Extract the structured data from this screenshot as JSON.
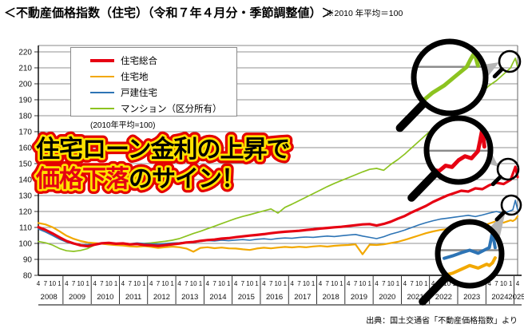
{
  "header": {
    "title": "＜不動産価格指数（住宅）（令和７年４月分・季節調整値）＞",
    "note": "※2010 年平均＝100"
  },
  "overlay": {
    "line1": "住宅ローン金利の上昇で",
    "line2_em": "価格下落",
    "line2_rest": "のサイン！",
    "colors": {
      "outline_outer": "#e50000",
      "outline_inner": "#ffe100",
      "fill_main": "#000000",
      "fill_em": "#e50012"
    }
  },
  "legend": {
    "items": [
      {
        "label": "住宅総合",
        "color": "#e60012"
      },
      {
        "label": "住宅地",
        "color": "#f2a800"
      },
      {
        "label": "戸建住宅",
        "color": "#2d74b5"
      },
      {
        "label": "マンション（区分所有）",
        "color": "#8cc320"
      }
    ],
    "note": "(2010年平均=100)"
  },
  "source": "出典：国土交通省「不動産価格指数」より",
  "chart_data": {
    "type": "line",
    "title": "不動産価格指数（住宅）季節調整値",
    "x_axis": {
      "start": "2008-04",
      "end": "2025-04",
      "month_tick_pattern": [
        "4",
        "7",
        "10",
        "1"
      ],
      "years": [
        "2008",
        "2009",
        "2010",
        "2011",
        "2012",
        "2013",
        "2014",
        "2015",
        "2016",
        "2017",
        "2018",
        "2019",
        "2020",
        "2021",
        "2022",
        "2023",
        "2024",
        "2025"
      ]
    },
    "y_axis": {
      "ticks": [
        80,
        90,
        100,
        110,
        120,
        130,
        140,
        150,
        160,
        170,
        180,
        190,
        200,
        210,
        220
      ],
      "ylim": [
        80,
        220
      ],
      "base_note": "2010年平均=100"
    },
    "grid": "horizontal",
    "legend_position": "top-left",
    "series": [
      {
        "name": "住宅総合",
        "color": "#e60012",
        "width": 3.2,
        "points": [
          [
            2008.25,
            110.2
          ],
          [
            2008.5,
            108.5
          ],
          [
            2008.75,
            106.3
          ],
          [
            2009,
            103.8
          ],
          [
            2009.25,
            101.5
          ],
          [
            2009.5,
            100
          ],
          [
            2009.75,
            98.8
          ],
          [
            2010,
            98.2
          ],
          [
            2010.25,
            99.2
          ],
          [
            2010.5,
            100.1
          ],
          [
            2010.75,
            100.3
          ],
          [
            2011,
            99.8
          ],
          [
            2011.25,
            100
          ],
          [
            2011.5,
            99.4
          ],
          [
            2011.75,
            99.6
          ],
          [
            2012,
            99
          ],
          [
            2012.25,
            98.8
          ],
          [
            2012.5,
            98.4
          ],
          [
            2012.75,
            98.9
          ],
          [
            2013,
            99.4
          ],
          [
            2013.25,
            99.9
          ],
          [
            2013.5,
            100.6
          ],
          [
            2013.75,
            100.9
          ],
          [
            2014,
            101.6
          ],
          [
            2014.25,
            102.1
          ],
          [
            2014.5,
            102.4
          ],
          [
            2014.75,
            103
          ],
          [
            2015,
            103.3
          ],
          [
            2015.25,
            103.9
          ],
          [
            2015.5,
            104.4
          ],
          [
            2015.75,
            104.9
          ],
          [
            2016,
            105.3
          ],
          [
            2016.25,
            105.8
          ],
          [
            2016.5,
            106.4
          ],
          [
            2016.75,
            106.9
          ],
          [
            2017,
            107.3
          ],
          [
            2017.25,
            107.6
          ],
          [
            2017.5,
            107.9
          ],
          [
            2017.75,
            108.4
          ],
          [
            2018,
            108.8
          ],
          [
            2018.25,
            109.3
          ],
          [
            2018.5,
            109.7
          ],
          [
            2018.75,
            110.1
          ],
          [
            2019,
            110.4
          ],
          [
            2019.25,
            110.9
          ],
          [
            2019.5,
            111.4
          ],
          [
            2019.75,
            111.9
          ],
          [
            2020,
            112.1
          ],
          [
            2020.25,
            111.2
          ],
          [
            2020.5,
            112.2
          ],
          [
            2020.75,
            113.6
          ],
          [
            2021,
            115.5
          ],
          [
            2021.25,
            117.2
          ],
          [
            2021.5,
            119.5
          ],
          [
            2021.75,
            121.5
          ],
          [
            2022,
            123.5
          ],
          [
            2022.25,
            126
          ],
          [
            2022.5,
            128
          ],
          [
            2022.75,
            130
          ],
          [
            2023,
            131.5
          ],
          [
            2023.25,
            133
          ],
          [
            2023.5,
            132.5
          ],
          [
            2023.75,
            134.5
          ],
          [
            2024,
            134
          ],
          [
            2024.25,
            136.5
          ],
          [
            2024.5,
            138
          ],
          [
            2024.75,
            137.2
          ],
          [
            2025,
            139.8
          ],
          [
            2025.08,
            143.5
          ],
          [
            2025.17,
            148
          ],
          [
            2025.25,
            141.5
          ]
        ]
      },
      {
        "name": "住宅地",
        "color": "#f2a800",
        "width": 2.2,
        "points": [
          [
            2008.25,
            112.8
          ],
          [
            2008.5,
            111.9
          ],
          [
            2008.75,
            110.2
          ],
          [
            2009,
            107.6
          ],
          [
            2009.25,
            104.8
          ],
          [
            2009.5,
            102.9
          ],
          [
            2009.75,
            101.5
          ],
          [
            2010,
            100.6
          ],
          [
            2010.25,
            100.2
          ],
          [
            2010.5,
            99.8
          ],
          [
            2010.75,
            99.3
          ],
          [
            2011,
            98.9
          ],
          [
            2011.25,
            98.7
          ],
          [
            2011.5,
            98.2
          ],
          [
            2011.75,
            97.9
          ],
          [
            2012,
            98.3
          ],
          [
            2012.25,
            97.8
          ],
          [
            2012.5,
            97.2
          ],
          [
            2012.75,
            97.6
          ],
          [
            2013,
            98
          ],
          [
            2013.25,
            97.6
          ],
          [
            2013.5,
            96.8
          ],
          [
            2013.75,
            94.8
          ],
          [
            2014,
            97.2
          ],
          [
            2014.25,
            97.6
          ],
          [
            2014.5,
            97
          ],
          [
            2014.75,
            97.4
          ],
          [
            2015,
            96.9
          ],
          [
            2015.25,
            96.8
          ],
          [
            2015.5,
            96.3
          ],
          [
            2015.75,
            95.9
          ],
          [
            2016,
            96.8
          ],
          [
            2016.25,
            97.3
          ],
          [
            2016.5,
            96.9
          ],
          [
            2016.75,
            97.4
          ],
          [
            2017,
            97.8
          ],
          [
            2017.25,
            97.5
          ],
          [
            2017.5,
            97.9
          ],
          [
            2017.75,
            97.6
          ],
          [
            2018,
            98.1
          ],
          [
            2018.25,
            98.4
          ],
          [
            2018.5,
            98
          ],
          [
            2018.75,
            98.5
          ],
          [
            2019,
            98.8
          ],
          [
            2019.25,
            99
          ],
          [
            2019.5,
            99.4
          ],
          [
            2019.75,
            93.2
          ],
          [
            2020,
            99.2
          ],
          [
            2020.25,
            99
          ],
          [
            2020.5,
            99.4
          ],
          [
            2020.75,
            100.2
          ],
          [
            2021,
            101
          ],
          [
            2021.25,
            102.2
          ],
          [
            2021.5,
            103.6
          ],
          [
            2021.75,
            105
          ],
          [
            2022,
            106.4
          ],
          [
            2022.25,
            107.5
          ],
          [
            2022.5,
            108.4
          ],
          [
            2022.75,
            109
          ],
          [
            2023,
            109.6
          ],
          [
            2023.25,
            110.2
          ],
          [
            2023.5,
            110.8
          ],
          [
            2023.75,
            110.2
          ],
          [
            2024,
            111
          ],
          [
            2024.25,
            112.5
          ],
          [
            2024.5,
            114
          ],
          [
            2024.75,
            113
          ],
          [
            2025,
            114.5
          ],
          [
            2025.08,
            114
          ],
          [
            2025.17,
            115
          ],
          [
            2025.25,
            117
          ]
        ]
      },
      {
        "name": "戸建住宅",
        "color": "#2d74b5",
        "width": 1.6,
        "points": [
          [
            2008.25,
            109
          ],
          [
            2008.5,
            107.2
          ],
          [
            2008.75,
            105
          ],
          [
            2009,
            102.6
          ],
          [
            2009.25,
            100.8
          ],
          [
            2009.5,
            99.6
          ],
          [
            2009.75,
            99
          ],
          [
            2010,
            99.2
          ],
          [
            2010.25,
            99.8
          ],
          [
            2010.5,
            100.3
          ],
          [
            2010.75,
            100.1
          ],
          [
            2011,
            99.9
          ],
          [
            2011.25,
            100.2
          ],
          [
            2011.5,
            99.8
          ],
          [
            2011.75,
            100.3
          ],
          [
            2012,
            99.9
          ],
          [
            2012.25,
            99.7
          ],
          [
            2012.5,
            99.4
          ],
          [
            2012.75,
            99.9
          ],
          [
            2013,
            100.2
          ],
          [
            2013.25,
            100.4
          ],
          [
            2013.5,
            100.8
          ],
          [
            2013.75,
            100.5
          ],
          [
            2014,
            101.2
          ],
          [
            2014.25,
            101.8
          ],
          [
            2014.5,
            101.5
          ],
          [
            2014.75,
            102
          ],
          [
            2015,
            101.7
          ],
          [
            2015.25,
            102.1
          ],
          [
            2015.5,
            102.4
          ],
          [
            2015.75,
            102
          ],
          [
            2016,
            102.6
          ],
          [
            2016.25,
            102.9
          ],
          [
            2016.5,
            102.5
          ],
          [
            2016.75,
            103.1
          ],
          [
            2017,
            103.4
          ],
          [
            2017.25,
            103.2
          ],
          [
            2017.5,
            103.7
          ],
          [
            2017.75,
            104
          ],
          [
            2018,
            103.8
          ],
          [
            2018.25,
            104.2
          ],
          [
            2018.5,
            104.6
          ],
          [
            2018.75,
            104.3
          ],
          [
            2019,
            104.8
          ],
          [
            2019.25,
            105.2
          ],
          [
            2019.5,
            105.6
          ],
          [
            2019.75,
            104.6
          ],
          [
            2020,
            103.8
          ],
          [
            2020.25,
            103
          ],
          [
            2020.5,
            104.2
          ],
          [
            2020.75,
            105.8
          ],
          [
            2021,
            107
          ],
          [
            2021.25,
            108.4
          ],
          [
            2021.5,
            110
          ],
          [
            2021.75,
            111.6
          ],
          [
            2022,
            113
          ],
          [
            2022.25,
            114.2
          ],
          [
            2022.5,
            115.2
          ],
          [
            2022.75,
            115.8
          ],
          [
            2023,
            116.4
          ],
          [
            2023.25,
            117
          ],
          [
            2023.5,
            117.6
          ],
          [
            2023.75,
            116.8
          ],
          [
            2024,
            117.8
          ],
          [
            2024.25,
            119
          ],
          [
            2024.5,
            120
          ],
          [
            2024.75,
            118.8
          ],
          [
            2025,
            120.5
          ],
          [
            2025.08,
            121
          ],
          [
            2025.17,
            127
          ],
          [
            2025.25,
            121
          ]
        ]
      },
      {
        "name": "マンション（区分所有）",
        "color": "#8cc320",
        "width": 1.7,
        "points": [
          [
            2008.25,
            101.2
          ],
          [
            2008.5,
            100.4
          ],
          [
            2008.75,
            99
          ],
          [
            2009,
            96.8
          ],
          [
            2009.25,
            95.4
          ],
          [
            2009.5,
            95
          ],
          [
            2009.75,
            95.6
          ],
          [
            2010,
            96.8
          ],
          [
            2010.25,
            99
          ],
          [
            2010.5,
            100.2
          ],
          [
            2010.75,
            100.5
          ],
          [
            2011,
            100.1
          ],
          [
            2011.25,
            100
          ],
          [
            2011.5,
            99.6
          ],
          [
            2011.75,
            99.8
          ],
          [
            2012,
            100
          ],
          [
            2012.25,
            100.3
          ],
          [
            2012.5,
            100.8
          ],
          [
            2012.75,
            101.3
          ],
          [
            2013,
            102
          ],
          [
            2013.25,
            103
          ],
          [
            2013.5,
            104.6
          ],
          [
            2013.75,
            106.2
          ],
          [
            2014,
            107.6
          ],
          [
            2014.25,
            109.2
          ],
          [
            2014.5,
            110.8
          ],
          [
            2014.75,
            112.4
          ],
          [
            2015,
            114
          ],
          [
            2015.25,
            115.6
          ],
          [
            2015.5,
            116.9
          ],
          [
            2015.75,
            118
          ],
          [
            2016,
            119.2
          ],
          [
            2016.25,
            120.4
          ],
          [
            2016.5,
            121.6
          ],
          [
            2016.75,
            119
          ],
          [
            2017,
            122.6
          ],
          [
            2017.25,
            124.6
          ],
          [
            2017.5,
            126.8
          ],
          [
            2017.75,
            129
          ],
          [
            2018,
            131.2
          ],
          [
            2018.25,
            133.4
          ],
          [
            2018.5,
            135.6
          ],
          [
            2018.75,
            137.6
          ],
          [
            2019,
            139.4
          ],
          [
            2019.25,
            141.2
          ],
          [
            2019.5,
            143
          ],
          [
            2019.75,
            144.8
          ],
          [
            2020,
            146.4
          ],
          [
            2020.25,
            147
          ],
          [
            2020.5,
            145.8
          ],
          [
            2020.75,
            149.5
          ],
          [
            2021,
            152.5
          ],
          [
            2021.25,
            156
          ],
          [
            2021.5,
            160
          ],
          [
            2021.75,
            164
          ],
          [
            2022,
            168
          ],
          [
            2022.25,
            172
          ],
          [
            2022.5,
            169.5
          ],
          [
            2022.75,
            175.5
          ],
          [
            2023,
            180
          ],
          [
            2023.25,
            184
          ],
          [
            2023.5,
            187.5
          ],
          [
            2023.75,
            191
          ],
          [
            2024,
            195
          ],
          [
            2024.25,
            199
          ],
          [
            2024.5,
            202
          ],
          [
            2024.75,
            206
          ],
          [
            2025,
            210
          ],
          [
            2025.08,
            213
          ],
          [
            2025.17,
            216
          ],
          [
            2025.25,
            210.5
          ]
        ]
      }
    ]
  }
}
